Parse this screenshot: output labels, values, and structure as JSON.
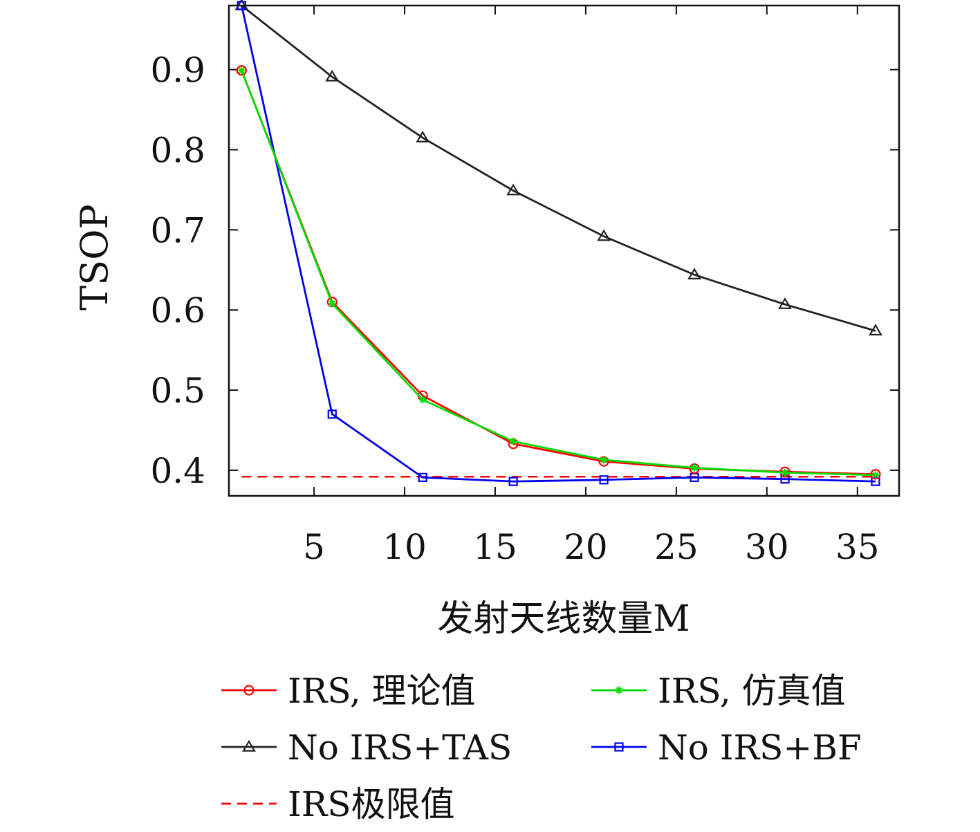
{
  "chart_data": {
    "type": "line",
    "title": "",
    "xlabel": "发射天线数量M",
    "ylabel": "TSOP",
    "xlim": [
      0.3,
      37.3
    ],
    "ylim": [
      0.368,
      0.98
    ],
    "xticks": [
      5,
      10,
      15,
      20,
      25,
      30,
      35
    ],
    "yticks": [
      0.4,
      0.5,
      0.6,
      0.7,
      0.8,
      0.9
    ],
    "ytick_labels": [
      "0.4",
      "0.5",
      "0.6",
      "0.7",
      "0.8",
      "0.9"
    ],
    "grid": false,
    "legend": {
      "placement": "below",
      "columns": 2
    },
    "x": [
      1,
      6,
      11,
      16,
      21,
      26,
      31,
      36
    ],
    "series": [
      {
        "name": "IRS, 理论值",
        "color": "#ff0000",
        "marker": "circle",
        "dash": "solid",
        "values": [
          0.899,
          0.61,
          0.493,
          0.433,
          0.411,
          0.402,
          0.398,
          0.395
        ]
      },
      {
        "name": "IRS, 仿真值",
        "color": "#00dd00",
        "marker": "asterisk",
        "dash": "solid",
        "values": [
          0.899,
          0.608,
          0.488,
          0.436,
          0.413,
          0.403,
          0.397,
          0.394
        ]
      },
      {
        "name": "No IRS+TAS",
        "color": "#222222",
        "marker": "triangle",
        "dash": "solid",
        "values": [
          0.98,
          0.891,
          0.815,
          0.749,
          0.692,
          0.644,
          0.607,
          0.574
        ]
      },
      {
        "name": "No IRS+BF",
        "color": "#0000ee",
        "marker": "square",
        "dash": "solid",
        "values": [
          0.98,
          0.47,
          0.391,
          0.386,
          0.388,
          0.391,
          0.389,
          0.386
        ]
      },
      {
        "name": "IRS极限值",
        "color": "#ff0000",
        "marker": "none",
        "dash": "dashed",
        "values": [
          0.392,
          0.392,
          0.392,
          0.392,
          0.392,
          0.392,
          0.392,
          0.392
        ]
      }
    ]
  }
}
